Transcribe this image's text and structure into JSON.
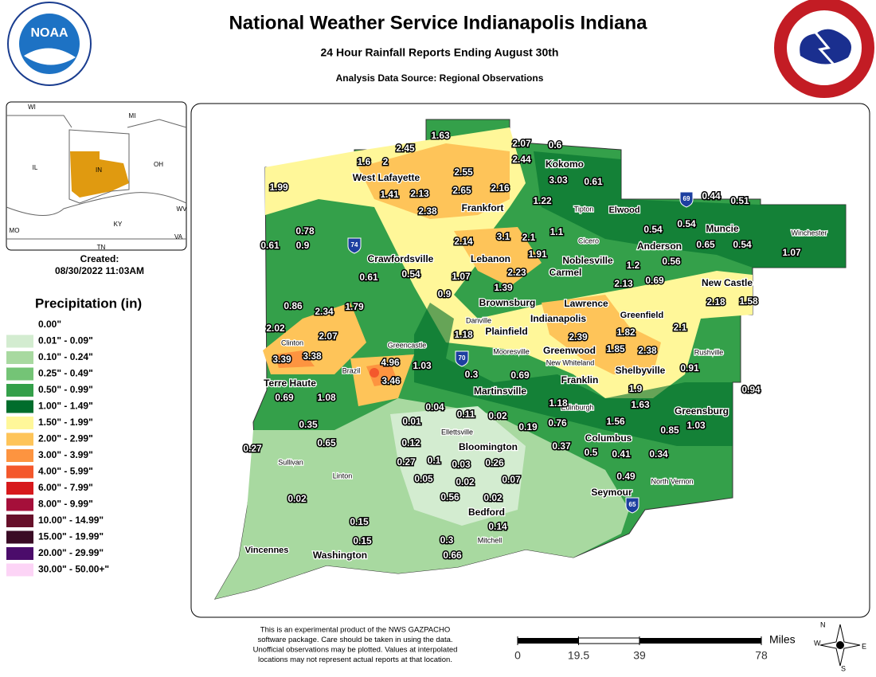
{
  "header": {
    "title": "National Weather Service Indianapolis Indiana",
    "subtitle": "24 Hour Rainfall Reports Ending August 30th",
    "source": "Analysis Data Source: Regional Observations",
    "logo_left": "NOAA"
  },
  "inset": {
    "states": [
      "WI",
      "MI",
      "IL",
      "IN",
      "OH",
      "KY",
      "MO",
      "WV",
      "TN",
      "VA"
    ]
  },
  "created": {
    "label": "Created:",
    "date": "08/30/2022 11:03AM"
  },
  "legend": {
    "title": "Precipitation (in)",
    "items": [
      {
        "label": "0.00\"",
        "color": "#ffffff"
      },
      {
        "label": "0.01\" - 0.09\"",
        "color": "#d3ecd0"
      },
      {
        "label": "0.10\" - 0.24\"",
        "color": "#a8d9a0"
      },
      {
        "label": "0.25\" - 0.49\"",
        "color": "#74c476"
      },
      {
        "label": "0.50\" - 0.99\"",
        "color": "#34a04a"
      },
      {
        "label": "1.00\" - 1.49\"",
        "color": "#006d2c"
      },
      {
        "label": "1.50\" - 1.99\"",
        "color": "#fff799"
      },
      {
        "label": "2.00\" - 2.99\"",
        "color": "#fec459"
      },
      {
        "label": "3.00\" - 3.99\"",
        "color": "#fd9440"
      },
      {
        "label": "4.00\" - 5.99\"",
        "color": "#f4582c"
      },
      {
        "label": "6.00\" - 7.99\"",
        "color": "#d7191c"
      },
      {
        "label": "8.00\" - 9.99\"",
        "color": "#a50f3a"
      },
      {
        "label": "10.00\" - 14.99\"",
        "color": "#67102a"
      },
      {
        "label": "15.00\" - 19.99\"",
        "color": "#3a0b25"
      },
      {
        "label": "20.00\" - 29.99\"",
        "color": "#4b0c6b"
      },
      {
        "label": "30.00\" - 50.00+\"",
        "color": "#fcd4f6"
      }
    ]
  },
  "reports": [
    1.63,
    2.45,
    2.07,
    0.6,
    1.6,
    2,
    2.44,
    2.55,
    3.03,
    0.61,
    1.99,
    1.41,
    2.13,
    2.65,
    2.16,
    1.22,
    0.44,
    0.51,
    2.38,
    0.54,
    0.54,
    0.78,
    1.1,
    2.14,
    3.1,
    2.1,
    0.61,
    0.9,
    0.65,
    0.54,
    1.07,
    1.91,
    1.2,
    0.56,
    0.61,
    0.54,
    1.07,
    2.23,
    2.13,
    0.69,
    1.39,
    0.9,
    0.86,
    2.34,
    1.79,
    2.18,
    1.58,
    2.02,
    2.07,
    1.18,
    2.39,
    1.82,
    2.1,
    1.85,
    2.38,
    3.39,
    3.38,
    4.96,
    1.03,
    0.91,
    0.3,
    0.69,
    3.46,
    1.9,
    0.69,
    1.08,
    0.94,
    1.18,
    1.63,
    0.04,
    0.11,
    0.02,
    0.01,
    0.19,
    0.76,
    1.56,
    0.35,
    0.85,
    1.03,
    0.65,
    0.12,
    0.37,
    0.5,
    0.41,
    0.34,
    0.27,
    0.27,
    0.1,
    0.03,
    0.26,
    0.49,
    0.05,
    0.02,
    0.07,
    0.02,
    0.56,
    0.02,
    0.14,
    0.15,
    0.15,
    0.3,
    0.66
  ],
  "cities": [
    "West Lafayette",
    "Kokomo",
    "Frankfort",
    "Tipton",
    "Elwood",
    "Muncie",
    "Winchester",
    "Anderson",
    "Cicero",
    "Crawfordsville",
    "Lebanon",
    "Noblesville",
    "Carmel",
    "New Castle",
    "Brownsburg",
    "Lawrence",
    "Greenfield",
    "Danville",
    "Indianapolis",
    "Plainfield",
    "Clinton",
    "Greencastle",
    "Rushville",
    "Mooresville",
    "Greenwood",
    "New Whiteland",
    "Brazil",
    "Shelbyville",
    "Franklin",
    "Terre Haute",
    "Martinsville",
    "Edinburgh",
    "Greensburg",
    "Ellettsville",
    "Columbus",
    "Bloomington",
    "Sullivan",
    "Linton",
    "North Vernon",
    "Seymour",
    "Bedford",
    "Mitchell",
    "Vincennes",
    "Washington"
  ],
  "interstates": [
    "74",
    "69",
    "70",
    "65"
  ],
  "disclaimer": [
    "This is an experimental product of the NWS GAZPACHO",
    "software package. Care should be taken in using the data.",
    "Unofficial observations may be plotted. Values at interpolated",
    "locations may not represent actual reports at that location."
  ],
  "scale": {
    "ticks": [
      0,
      19.5,
      39,
      78
    ],
    "unit": "Miles"
  },
  "compass": [
    "N",
    "E",
    "S",
    "W"
  ]
}
